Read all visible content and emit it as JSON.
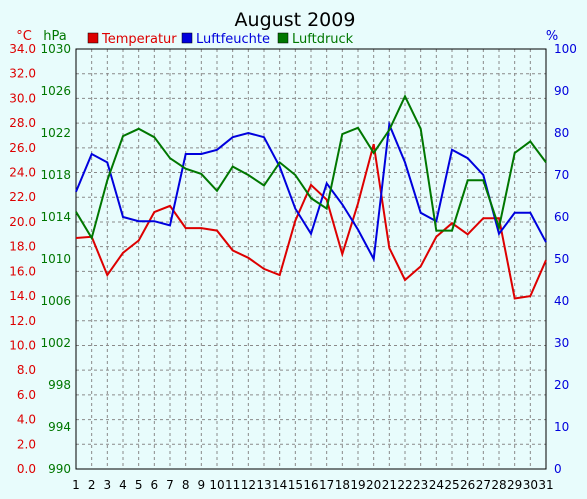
{
  "chart_data": {
    "type": "line",
    "title": "August 2009",
    "units": {
      "left_temp": "°C",
      "left_pressure": "hPa",
      "right_humidity": "%"
    },
    "x": [
      1,
      2,
      3,
      4,
      5,
      6,
      7,
      8,
      9,
      10,
      11,
      12,
      13,
      14,
      15,
      16,
      17,
      18,
      19,
      20,
      21,
      22,
      23,
      24,
      25,
      26,
      27,
      28,
      29,
      30,
      31
    ],
    "axes": {
      "temperature": {
        "min": 0,
        "max": 34,
        "ticks": [
          "0.0",
          "2.0",
          "4.0",
          "6.0",
          "8.0",
          "10.0",
          "12.0",
          "14.0",
          "16.0",
          "18.0",
          "20.0",
          "22.0",
          "24.0",
          "26.0",
          "28.0",
          "30.0",
          "32.0",
          "34.0"
        ]
      },
      "pressure": {
        "min": 990,
        "max": 1030,
        "ticks": [
          "990",
          "994",
          "998",
          "1002",
          "1006",
          "1010",
          "1014",
          "1018",
          "1022",
          "1026",
          "1030"
        ]
      },
      "humidity": {
        "min": 0,
        "max": 100,
        "ticks": [
          "0",
          "10",
          "20",
          "30",
          "40",
          "50",
          "60",
          "70",
          "80",
          "90",
          "100"
        ]
      }
    },
    "grid": true,
    "legend_position": "top",
    "series": [
      {
        "name": "Temperatur",
        "axis": "temperature",
        "color": "#dd0000",
        "values": [
          18.7,
          18.8,
          15.7,
          17.5,
          18.5,
          20.8,
          21.3,
          19.5,
          19.5,
          19.3,
          17.7,
          17.1,
          16.2,
          15.7,
          20.1,
          23.0,
          21.8,
          17.4,
          21.5,
          26.3,
          17.9,
          15.3,
          16.4,
          18.8,
          19.9,
          19.0,
          20.3,
          20.3,
          13.8,
          14.0,
          16.9
        ]
      },
      {
        "name": "Luftfeuchte",
        "axis": "humidity",
        "color": "#0000dd",
        "values": [
          66,
          75,
          73,
          60,
          59,
          59,
          58,
          75,
          75,
          76,
          79,
          80,
          79,
          72,
          62,
          56,
          68,
          63,
          57,
          50,
          82,
          73,
          61,
          59,
          76,
          74,
          70,
          56,
          61,
          61,
          54
        ]
      },
      {
        "name": "Luftdruck",
        "axis": "pressure",
        "color": "#007700",
        "values": [
          1014.5,
          1012.0,
          1017.5,
          1021.7,
          1022.4,
          1021.6,
          1019.6,
          1018.6,
          1018.1,
          1016.5,
          1018.8,
          1018.0,
          1017.0,
          1019.2,
          1018.0,
          1015.8,
          1014.8,
          1021.9,
          1022.5,
          1020.1,
          1022.3,
          1025.5,
          1022.4,
          1012.7,
          1012.7,
          1017.5,
          1017.5,
          1013.0,
          1020.1,
          1021.2,
          1019.2
        ]
      }
    ]
  }
}
